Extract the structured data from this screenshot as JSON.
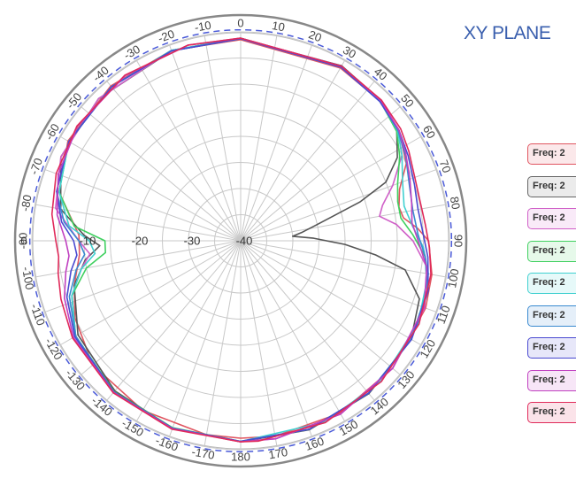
{
  "title": "XY PLANE",
  "chart_data": {
    "type": "polar-line",
    "angular_ticks": [
      "0",
      "10",
      "20",
      "30",
      "40",
      "50",
      "60",
      "70",
      "80",
      "90",
      "100",
      "110",
      "120",
      "130",
      "140",
      "150",
      "160",
      "170",
      "180",
      "-170",
      "-160",
      "-150",
      "-140",
      "-130",
      "-120",
      "-110",
      "-100",
      "-90",
      "-80",
      "-70",
      "-60",
      "-50",
      "-40",
      "-30",
      "-20",
      "-10"
    ],
    "radial_ticks": [
      "0",
      "-10",
      "-20",
      "-30",
      "-40"
    ],
    "radial_range": [
      -40,
      0
    ],
    "reference_level": -3,
    "legend": [
      {
        "label": "Freq: 2",
        "color": "#e05560"
      },
      {
        "label": "Freq: 2",
        "color": "#666666"
      },
      {
        "label": "Freq: 2",
        "color": "#d060c8"
      },
      {
        "label": "Freq: 2",
        "color": "#40d060"
      },
      {
        "label": "Freq: 2",
        "color": "#40d0d0"
      },
      {
        "label": "Freq: 2",
        "color": "#3a8ad0"
      },
      {
        "label": "Freq: 2",
        "color": "#4a4ad0"
      },
      {
        "label": "Freq: 2",
        "color": "#c040c0"
      },
      {
        "label": "Freq: 2",
        "color": "#e02a5a"
      }
    ],
    "series": [
      {
        "color": "#e05560",
        "points": [
          [
            0,
            -1.5
          ],
          [
            30,
            -1.8
          ],
          [
            45,
            -2.2
          ],
          [
            55,
            -3
          ],
          [
            65,
            -5
          ],
          [
            72,
            -8
          ],
          [
            78,
            -9
          ],
          [
            82,
            -8.5
          ],
          [
            86,
            -6
          ],
          [
            90,
            -4
          ],
          [
            100,
            -2.8
          ],
          [
            110,
            -2.3
          ],
          [
            130,
            -2
          ],
          [
            150,
            -1.9
          ],
          [
            170,
            -2
          ],
          [
            180,
            -2.2
          ],
          [
            -170,
            -2.3
          ],
          [
            -150,
            -2.5
          ],
          [
            -130,
            -3
          ],
          [
            -115,
            -5
          ],
          [
            -105,
            -7
          ],
          [
            -95,
            -9
          ],
          [
            -88,
            -9
          ],
          [
            -75,
            -4
          ],
          [
            -60,
            -1.8
          ],
          [
            -40,
            -1.3
          ],
          [
            -20,
            -1.2
          ]
        ]
      },
      {
        "color": "#555555",
        "points": [
          [
            0,
            -1.3
          ],
          [
            30,
            -1.3
          ],
          [
            45,
            -2
          ],
          [
            55,
            -3.5
          ],
          [
            62,
            -6
          ],
          [
            68,
            -10
          ],
          [
            72,
            -16
          ],
          [
            78,
            -25
          ],
          [
            82,
            -28
          ],
          [
            85,
            -30
          ],
          [
            88,
            -26
          ],
          [
            92,
            -20
          ],
          [
            96,
            -14
          ],
          [
            100,
            -8
          ],
          [
            108,
            -4
          ],
          [
            120,
            -2.3
          ],
          [
            140,
            -1.8
          ],
          [
            160,
            -1.5
          ],
          [
            180,
            -1.5
          ],
          [
            -160,
            -1.8
          ],
          [
            -140,
            -2.5
          ],
          [
            -120,
            -4
          ],
          [
            -105,
            -7
          ],
          [
            -97,
            -10
          ],
          [
            -92,
            -13
          ],
          [
            -88,
            -10
          ],
          [
            -80,
            -5
          ],
          [
            -65,
            -2
          ],
          [
            -45,
            -1.5
          ],
          [
            -20,
            -1.3
          ]
        ]
      },
      {
        "color": "#d060c8",
        "points": [
          [
            0,
            -1.2
          ],
          [
            30,
            -1.4
          ],
          [
            45,
            -2
          ],
          [
            55,
            -3.2
          ],
          [
            62,
            -5
          ],
          [
            70,
            -9
          ],
          [
            76,
            -12
          ],
          [
            80,
            -13
          ],
          [
            84,
            -10
          ],
          [
            90,
            -7
          ],
          [
            98,
            -4
          ],
          [
            110,
            -2.5
          ],
          [
            130,
            -2
          ],
          [
            150,
            -1.7
          ],
          [
            170,
            -1.5
          ],
          [
            180,
            -1.6
          ],
          [
            -160,
            -1.8
          ],
          [
            -140,
            -2.2
          ],
          [
            -120,
            -3.5
          ],
          [
            -108,
            -6
          ],
          [
            -100,
            -9
          ],
          [
            -95,
            -11
          ],
          [
            -90,
            -9
          ],
          [
            -80,
            -4
          ],
          [
            -65,
            -2
          ],
          [
            -45,
            -1.5
          ],
          [
            -20,
            -1.2
          ]
        ]
      },
      {
        "color": "#40d060",
        "points": [
          [
            0,
            -1.2
          ],
          [
            30,
            -1.5
          ],
          [
            45,
            -2.2
          ],
          [
            55,
            -3.5
          ],
          [
            62,
            -5.5
          ],
          [
            70,
            -8
          ],
          [
            76,
            -9
          ],
          [
            82,
            -9
          ],
          [
            88,
            -7
          ],
          [
            95,
            -4.5
          ],
          [
            105,
            -3
          ],
          [
            120,
            -2.3
          ],
          [
            140,
            -1.9
          ],
          [
            160,
            -1.6
          ],
          [
            180,
            -1.6
          ],
          [
            -160,
            -1.9
          ],
          [
            -140,
            -2.3
          ],
          [
            -120,
            -3.5
          ],
          [
            -108,
            -6
          ],
          [
            -100,
            -10
          ],
          [
            -95,
            -14
          ],
          [
            -90,
            -14
          ],
          [
            -85,
            -8
          ],
          [
            -75,
            -4
          ],
          [
            -60,
            -2
          ],
          [
            -40,
            -1.5
          ],
          [
            -20,
            -1.2
          ]
        ]
      },
      {
        "color": "#40d0d0",
        "points": [
          [
            0,
            -1.2
          ],
          [
            30,
            -1.5
          ],
          [
            45,
            -2.2
          ],
          [
            55,
            -3.3
          ],
          [
            62,
            -5
          ],
          [
            70,
            -7
          ],
          [
            78,
            -8
          ],
          [
            85,
            -7
          ],
          [
            92,
            -5
          ],
          [
            100,
            -3.5
          ],
          [
            115,
            -2.5
          ],
          [
            135,
            -2
          ],
          [
            155,
            -1.7
          ],
          [
            180,
            -1.6
          ],
          [
            -160,
            -1.8
          ],
          [
            -140,
            -2.2
          ],
          [
            -120,
            -3.5
          ],
          [
            -108,
            -6
          ],
          [
            -100,
            -9
          ],
          [
            -95,
            -12
          ],
          [
            -90,
            -11
          ],
          [
            -85,
            -7
          ],
          [
            -75,
            -4
          ],
          [
            -60,
            -2
          ],
          [
            -40,
            -1.5
          ],
          [
            -20,
            -1.2
          ]
        ]
      },
      {
        "color": "#3a8ad0",
        "points": [
          [
            0,
            -1.3
          ],
          [
            30,
            -1.6
          ],
          [
            45,
            -2.3
          ],
          [
            55,
            -3.2
          ],
          [
            63,
            -4.5
          ],
          [
            72,
            -6
          ],
          [
            80,
            -6.5
          ],
          [
            88,
            -6
          ],
          [
            95,
            -4.5
          ],
          [
            105,
            -3
          ],
          [
            120,
            -2.3
          ],
          [
            140,
            -1.9
          ],
          [
            160,
            -1.6
          ],
          [
            180,
            -1.6
          ],
          [
            -160,
            -1.8
          ],
          [
            -140,
            -2.2
          ],
          [
            -120,
            -3.5
          ],
          [
            -108,
            -5.5
          ],
          [
            -100,
            -8
          ],
          [
            -95,
            -10
          ],
          [
            -90,
            -9
          ],
          [
            -84,
            -6
          ],
          [
            -75,
            -3.5
          ],
          [
            -60,
            -2
          ],
          [
            -40,
            -1.5
          ],
          [
            -20,
            -1.3
          ]
        ]
      },
      {
        "color": "#4a4ad0",
        "points": [
          [
            0,
            -1.3
          ],
          [
            30,
            -1.6
          ],
          [
            45,
            -2.3
          ],
          [
            55,
            -3
          ],
          [
            63,
            -4
          ],
          [
            72,
            -5
          ],
          [
            80,
            -5.5
          ],
          [
            88,
            -5
          ],
          [
            95,
            -4
          ],
          [
            105,
            -2.8
          ],
          [
            120,
            -2.2
          ],
          [
            140,
            -1.9
          ],
          [
            160,
            -1.6
          ],
          [
            180,
            -1.6
          ],
          [
            -160,
            -1.8
          ],
          [
            -140,
            -2.2
          ],
          [
            -120,
            -3.3
          ],
          [
            -108,
            -5
          ],
          [
            -100,
            -7
          ],
          [
            -95,
            -8.5
          ],
          [
            -90,
            -8
          ],
          [
            -84,
            -5.5
          ],
          [
            -75,
            -3.5
          ],
          [
            -60,
            -2
          ],
          [
            -40,
            -1.5
          ],
          [
            -20,
            -1.3
          ]
        ]
      },
      {
        "color": "#c040c0",
        "points": [
          [
            0,
            -1.2
          ],
          [
            30,
            -1.4
          ],
          [
            45,
            -2
          ],
          [
            55,
            -3
          ],
          [
            62,
            -4.2
          ],
          [
            70,
            -5.5
          ],
          [
            78,
            -6.5
          ],
          [
            84,
            -7
          ],
          [
            90,
            -6
          ],
          [
            98,
            -4
          ],
          [
            110,
            -2.6
          ],
          [
            130,
            -2
          ],
          [
            150,
            -1.7
          ],
          [
            170,
            -1.5
          ],
          [
            180,
            -1.5
          ],
          [
            -160,
            -1.7
          ],
          [
            -140,
            -2.1
          ],
          [
            -120,
            -3
          ],
          [
            -108,
            -4.5
          ],
          [
            -100,
            -6
          ],
          [
            -95,
            -7
          ],
          [
            -90,
            -6.5
          ],
          [
            -82,
            -4.5
          ],
          [
            -70,
            -2.8
          ],
          [
            -55,
            -1.8
          ],
          [
            -35,
            -1.4
          ],
          [
            -15,
            -1.2
          ]
        ]
      },
      {
        "color": "#e02a5a",
        "points": [
          [
            0,
            -1.2
          ],
          [
            30,
            -1.4
          ],
          [
            45,
            -1.9
          ],
          [
            55,
            -2.6
          ],
          [
            62,
            -3.5
          ],
          [
            70,
            -4.5
          ],
          [
            78,
            -4.8
          ],
          [
            85,
            -4.5
          ],
          [
            92,
            -3.8
          ],
          [
            100,
            -3
          ],
          [
            115,
            -2.3
          ],
          [
            135,
            -1.9
          ],
          [
            155,
            -1.6
          ],
          [
            175,
            -1.5
          ],
          [
            180,
            -1.5
          ],
          [
            -160,
            -1.6
          ],
          [
            -140,
            -2
          ],
          [
            -120,
            -2.8
          ],
          [
            -108,
            -3.8
          ],
          [
            -100,
            -4.5
          ],
          [
            -95,
            -5
          ],
          [
            -90,
            -4.6
          ],
          [
            -82,
            -3.5
          ],
          [
            -70,
            -2.4
          ],
          [
            -55,
            -1.7
          ],
          [
            -35,
            -1.3
          ],
          [
            -15,
            -1.2
          ]
        ]
      }
    ]
  }
}
